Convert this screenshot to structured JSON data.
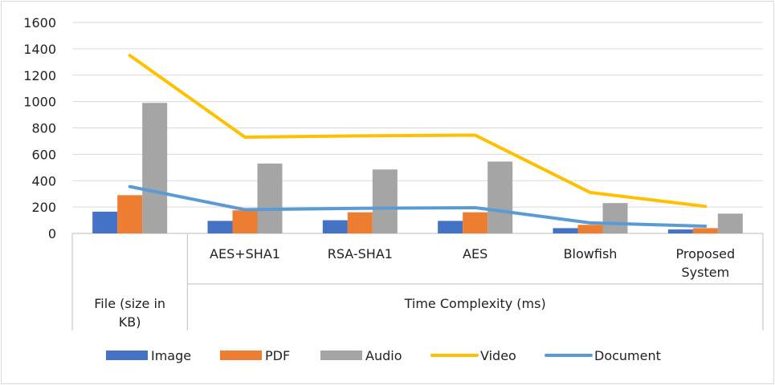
{
  "chart_data": {
    "type": "bar",
    "y_ticks": [
      "0",
      "200",
      "400",
      "600",
      "800",
      "1000",
      "1200",
      "1400",
      "1600"
    ],
    "ylim": [
      0,
      1600
    ],
    "grid": true,
    "categories": [
      {
        "lines": [
          "",
          "File (size in",
          "KB)"
        ]
      },
      {
        "lines": [
          "AES+SHA1"
        ]
      },
      {
        "lines": [
          "RSA-SHA1"
        ]
      },
      {
        "lines": [
          "AES"
        ]
      },
      {
        "lines": [
          "Blowfish"
        ]
      },
      {
        "lines": [
          "Proposed",
          "System"
        ]
      }
    ],
    "group_labels": [
      {
        "text": "File (size in KB)",
        "span": [
          0,
          0
        ]
      },
      {
        "text": "Time Complexity (ms)",
        "span": [
          1,
          5
        ]
      }
    ],
    "series": [
      {
        "name": "Image",
        "kind": "bar",
        "color": "#4472C4",
        "values": [
          165,
          95,
          100,
          95,
          40,
          30
        ]
      },
      {
        "name": "PDF",
        "kind": "bar",
        "color": "#ED7D31",
        "values": [
          290,
          175,
          160,
          160,
          65,
          40
        ]
      },
      {
        "name": "Audio",
        "kind": "bar",
        "color": "#A5A5A5",
        "values": [
          990,
          530,
          485,
          545,
          230,
          150
        ]
      },
      {
        "name": "Video",
        "kind": "line",
        "color": "#FFC000",
        "values": [
          1350,
          730,
          740,
          745,
          310,
          205
        ]
      },
      {
        "name": "Document",
        "kind": "line",
        "color": "#5B9BD5",
        "values": [
          355,
          180,
          190,
          195,
          80,
          55
        ]
      }
    ],
    "legend": {
      "position": "bottom"
    }
  }
}
